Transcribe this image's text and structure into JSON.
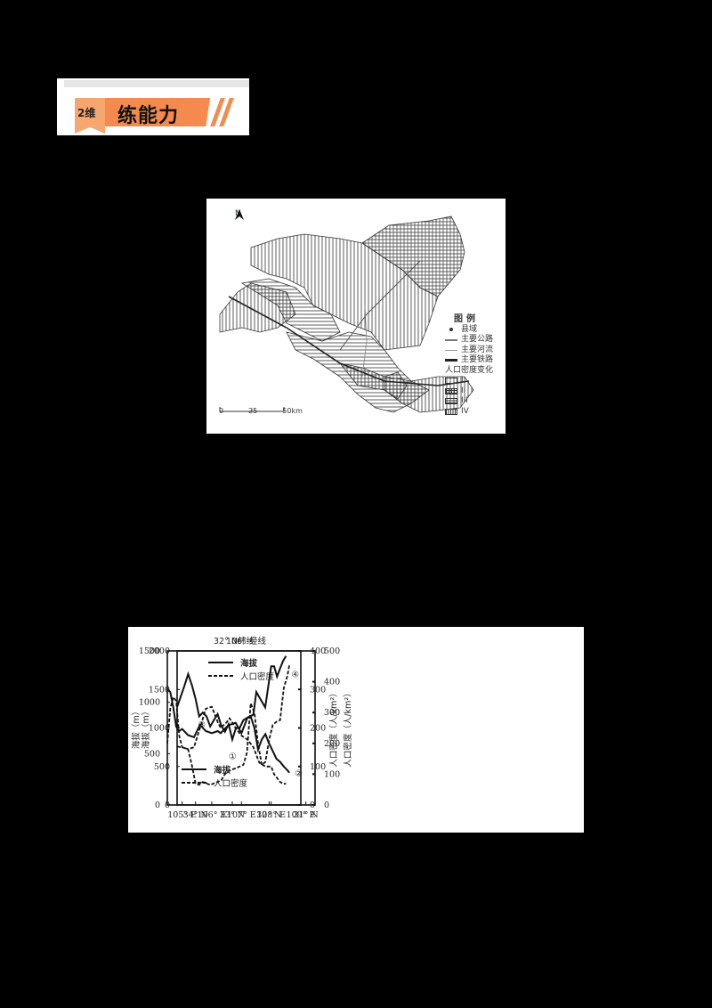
{
  "header": {
    "tag_label": "2维",
    "title": "练能力",
    "colors": {
      "tag": "#f7a66e",
      "bar": "#f48a4e"
    }
  },
  "map": {
    "north_label": "N",
    "legend": {
      "title": "图例",
      "items": [
        {
          "symbol": "dot",
          "label": "县域"
        },
        {
          "symbol": "thick-line",
          "label": "主要公路"
        },
        {
          "symbol": "thin-line",
          "label": "主要河流"
        },
        {
          "symbol": "rail-line",
          "label": "主要铁路"
        }
      ],
      "density_title": "人口密度变化",
      "classes": [
        {
          "pattern": "blank",
          "label": "I"
        },
        {
          "pattern": "grid",
          "label": "II"
        },
        {
          "pattern": "horizontal",
          "label": "III"
        },
        {
          "pattern": "vertical",
          "label": "IV"
        }
      ]
    },
    "scale": {
      "ticks": [
        "0",
        "25",
        "50km"
      ]
    }
  },
  "chart_data": [
    {
      "type": "line",
      "title": "106° 经线",
      "xlabel": "",
      "x_ticks": [
        "34° N",
        "33° N",
        "32° N",
        "31° N"
      ],
      "ylabel_left": "海拔（m）",
      "ylabel_right": "人口密度（人/km²）",
      "ylim_left": [
        0,
        2000
      ],
      "ylim_right": [
        0,
        500
      ],
      "y_ticks_left": [
        "0",
        "500",
        "1000",
        "1500",
        "2000"
      ],
      "y_ticks_right": [
        "0",
        "100",
        "200",
        "300",
        "400",
        "500"
      ],
      "legend": [
        "海拔",
        "人口密度"
      ],
      "legend_position": "top",
      "annotations": [
        {
          "label": "①",
          "x": 33.0,
          "y_left": 850
        },
        {
          "label": "②",
          "x": 31.45,
          "y_left": 420
        }
      ],
      "x": [
        34.5,
        34.3,
        34.2,
        34.1,
        34.0,
        33.9,
        33.8,
        33.7,
        33.6,
        33.5,
        33.4,
        33.3,
        33.2,
        33.1,
        33.0,
        32.9,
        32.8,
        32.7,
        32.6,
        32.5,
        32.4,
        32.3,
        32.2,
        32.1,
        32.0,
        31.9,
        31.8,
        31.7,
        31.6,
        31.5,
        31.45
      ],
      "series": [
        {
          "name": "海拔",
          "axis": "left",
          "style": "solid",
          "values": [
            1270,
            1550,
            1700,
            1560,
            1380,
            1150,
            1200,
            1150,
            1020,
            1100,
            1180,
            1030,
            950,
            1050,
            850,
            1000,
            1000,
            1100,
            1130,
            1150,
            1000,
            720,
            850,
            920,
            800,
            700,
            600,
            560,
            500,
            450,
            420
          ]
        },
        {
          "name": "人口密度",
          "axis": "right",
          "style": "dashed",
          "values": [
            190,
            185,
            180,
            130,
            70,
            65,
            75,
            70,
            65,
            70,
            75,
            80,
            100,
            110,
            115,
            120,
            125,
            130,
            170,
            330,
            300,
            200,
            130,
            140,
            210,
            260,
            270,
            275,
            380,
            420,
            455
          ]
        }
      ]
    },
    {
      "type": "line",
      "title": "32° N纬线",
      "xlabel": "",
      "x_ticks": [
        "105° E",
        "106° E",
        "107° E",
        "108° E",
        "109° E"
      ],
      "ylabel_left": "海拔（m）",
      "ylabel_right": "人口密度（人/km²）",
      "ylim_left": [
        0,
        1500
      ],
      "ylim_right": [
        0,
        400
      ],
      "y_ticks_left": [
        "0",
        "500",
        "1000",
        "1500"
      ],
      "y_ticks_right": [
        "0",
        "100",
        "200",
        "300",
        "400"
      ],
      "legend": [
        "海拔",
        "人口密度"
      ],
      "legend_position": "lower-left",
      "annotations": [
        {
          "label": "③",
          "x": 105.35,
          "y_left": 790
        },
        {
          "label": "④",
          "x": 108.5,
          "y_left": 1280
        }
      ],
      "x": [
        104.5,
        104.6,
        104.7,
        104.8,
        104.9,
        105.0,
        105.2,
        105.4,
        105.6,
        105.8,
        106.0,
        106.2,
        106.3,
        106.5,
        106.6,
        106.8,
        107.0,
        107.2,
        107.4,
        107.5,
        107.6,
        107.8,
        108.0,
        108.1,
        108.2,
        108.3,
        108.4,
        108.5
      ],
      "series": [
        {
          "name": "海拔",
          "axis": "left",
          "style": "solid",
          "values": [
            1130,
            1100,
            950,
            760,
            720,
            740,
            680,
            660,
            780,
            720,
            700,
            720,
            700,
            760,
            780,
            800,
            700,
            850,
            880,
            1100,
            1050,
            950,
            1350,
            1350,
            1250,
            1330,
            1400,
            1450
          ]
        },
        {
          "name": "人口密度",
          "axis": "right",
          "style": "dashed",
          "values": [
            160,
            250,
            280,
            270,
            180,
            150,
            145,
            150,
            200,
            250,
            255,
            215,
            200,
            215,
            225,
            200,
            180,
            170,
            150,
            130,
            110,
            100,
            100,
            80,
            70,
            60,
            55,
            55
          ]
        }
      ]
    }
  ]
}
